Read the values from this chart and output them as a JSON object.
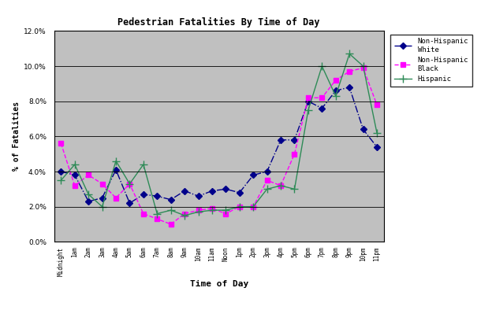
{
  "title": "Pedestrian Fatalities By Time of Day",
  "xlabel": "Time of Day",
  "ylabel": "% of Fatalities",
  "time_labels": [
    "Midnight",
    "1am",
    "2am",
    "3am",
    "4am",
    "5am",
    "6am",
    "7am",
    "8am",
    "9am",
    "10am",
    "11am",
    "Noon",
    "1pm",
    "2pm",
    "3pm",
    "4pm",
    "5pm",
    "6pm",
    "7pm",
    "8pm",
    "9pm",
    "10pm",
    "11pm"
  ],
  "series": {
    "Non-Hispanic White": {
      "color": "#00008B",
      "linestyle": "-.",
      "marker": "D",
      "markersize": 4,
      "values": [
        0.04,
        0.038,
        0.023,
        0.025,
        0.041,
        0.022,
        0.027,
        0.026,
        0.024,
        0.029,
        0.026,
        0.029,
        0.03,
        0.028,
        0.038,
        0.04,
        0.058,
        0.058,
        0.08,
        0.076,
        0.086,
        0.088,
        0.064,
        0.054
      ]
    },
    "Non-Hispanic Black": {
      "color": "#FF00FF",
      "linestyle": "--",
      "marker": "s",
      "markersize": 5,
      "values": [
        0.056,
        0.032,
        0.038,
        0.033,
        0.025,
        0.033,
        0.016,
        0.013,
        0.01,
        0.016,
        0.018,
        0.019,
        0.016,
        0.02,
        0.02,
        0.035,
        0.032,
        0.05,
        0.082,
        0.082,
        0.092,
        0.097,
        0.099,
        0.078
      ]
    },
    "Hispanic": {
      "color": "#2E8B57",
      "linestyle": "-",
      "marker": "+",
      "markersize": 7,
      "values": [
        0.035,
        0.044,
        0.027,
        0.02,
        0.046,
        0.033,
        0.044,
        0.016,
        0.018,
        0.015,
        0.017,
        0.018,
        0.018,
        0.02,
        0.02,
        0.03,
        0.032,
        0.03,
        0.075,
        0.1,
        0.083,
        0.107,
        0.1,
        0.062
      ]
    }
  },
  "ylim": [
    0.0,
    0.12
  ],
  "yticks": [
    0.0,
    0.02,
    0.04,
    0.06,
    0.08,
    0.1,
    0.12
  ],
  "background_color": "#c0c0c0",
  "figure_background": "#ffffff",
  "legend_labels": [
    "Non-Hispanic\nWhite",
    "Non-Hispanic\nBlack",
    "Hispanic"
  ]
}
